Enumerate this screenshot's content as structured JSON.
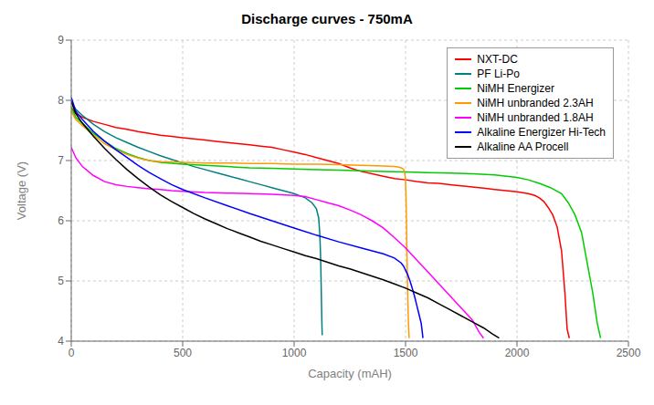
{
  "chart_data": {
    "type": "line",
    "title": "Discharge curves - 750mA",
    "xlabel": "Capacity (mAH)",
    "ylabel": "Voltage (V)",
    "xlim": [
      0,
      2500
    ],
    "ylim": [
      4,
      9
    ],
    "xticks": [
      0,
      500,
      1000,
      1500,
      2000,
      2500
    ],
    "yticks": [
      4,
      5,
      6,
      7,
      8,
      9
    ],
    "grid": true,
    "legend": "upper right",
    "series": [
      {
        "name": "NXT-DC",
        "color": "#ff0000",
        "x": [
          0,
          20,
          50,
          100,
          150,
          200,
          250,
          300,
          350,
          400,
          450,
          500,
          550,
          600,
          650,
          700,
          750,
          800,
          850,
          900,
          950,
          1000,
          1050,
          1100,
          1150,
          1200,
          1250,
          1300,
          1350,
          1400,
          1450,
          1500,
          1550,
          1600,
          1650,
          1700,
          1750,
          1800,
          1850,
          1900,
          1950,
          2000,
          2050,
          2080,
          2100,
          2120,
          2140,
          2160,
          2180,
          2200,
          2215,
          2225,
          2235
        ],
        "values": [
          7.88,
          7.78,
          7.72,
          7.65,
          7.6,
          7.55,
          7.52,
          7.48,
          7.45,
          7.42,
          7.4,
          7.38,
          7.36,
          7.34,
          7.32,
          7.3,
          7.28,
          7.26,
          7.24,
          7.22,
          7.18,
          7.14,
          7.1,
          7.05,
          7.0,
          6.95,
          6.88,
          6.82,
          6.78,
          6.74,
          6.7,
          6.68,
          6.65,
          6.63,
          6.62,
          6.6,
          6.58,
          6.56,
          6.54,
          6.52,
          6.5,
          6.48,
          6.45,
          6.42,
          6.38,
          6.32,
          6.22,
          6.1,
          5.9,
          5.5,
          4.8,
          4.2,
          4.05
        ]
      },
      {
        "name": "PF Li-Po",
        "color": "#008080",
        "x": [
          0,
          20,
          50,
          100,
          150,
          200,
          250,
          300,
          350,
          400,
          450,
          500,
          550,
          600,
          650,
          700,
          750,
          800,
          850,
          900,
          950,
          1000,
          1050,
          1080,
          1100,
          1110,
          1115,
          1118,
          1120,
          1122,
          1124,
          1126
        ],
        "values": [
          7.98,
          7.85,
          7.75,
          7.6,
          7.48,
          7.38,
          7.3,
          7.22,
          7.15,
          7.08,
          7.02,
          6.96,
          6.9,
          6.85,
          6.8,
          6.75,
          6.7,
          6.65,
          6.6,
          6.55,
          6.5,
          6.45,
          6.38,
          6.3,
          6.2,
          6.05,
          5.8,
          5.5,
          5.2,
          4.8,
          4.4,
          4.1
        ]
      },
      {
        "name": "NiMH Energizer",
        "color": "#00cc00",
        "x": [
          0,
          20,
          50,
          100,
          150,
          200,
          250,
          300,
          350,
          400,
          500,
          600,
          700,
          800,
          900,
          1000,
          1100,
          1200,
          1300,
          1400,
          1500,
          1600,
          1700,
          1800,
          1900,
          2000,
          2050,
          2100,
          2150,
          2200,
          2230,
          2260,
          2290,
          2310,
          2340,
          2360,
          2375
        ],
        "values": [
          7.88,
          7.72,
          7.62,
          7.45,
          7.32,
          7.2,
          7.12,
          7.05,
          7.0,
          6.97,
          6.94,
          6.92,
          6.9,
          6.88,
          6.87,
          6.86,
          6.85,
          6.84,
          6.83,
          6.82,
          6.81,
          6.8,
          6.79,
          6.78,
          6.76,
          6.72,
          6.68,
          6.62,
          6.55,
          6.45,
          6.3,
          6.1,
          5.8,
          5.4,
          4.8,
          4.3,
          4.05
        ]
      },
      {
        "name": "NiMH unbranded 2.3AH",
        "color": "#ff9900",
        "x": [
          0,
          20,
          50,
          100,
          150,
          200,
          250,
          300,
          350,
          400,
          500,
          600,
          700,
          800,
          900,
          1000,
          1100,
          1200,
          1300,
          1400,
          1450,
          1470,
          1480,
          1490,
          1495,
          1498,
          1500,
          1502,
          1504,
          1506,
          1508,
          1510,
          1513,
          1516
        ],
        "values": [
          7.82,
          7.68,
          7.58,
          7.42,
          7.28,
          7.18,
          7.1,
          7.04,
          7.0,
          6.98,
          6.97,
          6.96,
          6.96,
          6.95,
          6.95,
          6.94,
          6.94,
          6.93,
          6.92,
          6.91,
          6.9,
          6.89,
          6.88,
          6.86,
          6.82,
          6.75,
          6.65,
          6.4,
          6.0,
          5.5,
          5.1,
          4.7,
          4.3,
          4.05
        ]
      },
      {
        "name": "NiMH unbranded 1.8AH",
        "color": "#ff00ff",
        "x": [
          0,
          20,
          50,
          100,
          150,
          200,
          250,
          300,
          350,
          400,
          450,
          500,
          600,
          700,
          800,
          900,
          1000,
          1050,
          1100,
          1150,
          1200,
          1250,
          1300,
          1350,
          1400,
          1450,
          1500,
          1550,
          1600,
          1650,
          1700,
          1750,
          1800,
          1830,
          1850
        ],
        "values": [
          7.22,
          7.05,
          6.9,
          6.75,
          6.65,
          6.6,
          6.57,
          6.55,
          6.53,
          6.52,
          6.5,
          6.49,
          6.47,
          6.46,
          6.45,
          6.44,
          6.42,
          6.4,
          6.35,
          6.3,
          6.25,
          6.18,
          6.1,
          6.0,
          5.88,
          5.72,
          5.55,
          5.35,
          5.15,
          4.95,
          4.75,
          4.55,
          4.35,
          4.15,
          4.05
        ]
      },
      {
        "name": "Alkaline Energizer Hi-Tech",
        "color": "#0000ff",
        "x": [
          0,
          20,
          50,
          100,
          150,
          200,
          250,
          300,
          350,
          400,
          450,
          500,
          600,
          700,
          800,
          900,
          1000,
          1100,
          1200,
          1300,
          1400,
          1450,
          1480,
          1490,
          1500,
          1510,
          1520,
          1530,
          1540,
          1550,
          1560,
          1570,
          1575,
          1578
        ],
        "values": [
          8.05,
          7.82,
          7.68,
          7.48,
          7.32,
          7.18,
          7.05,
          6.92,
          6.8,
          6.7,
          6.6,
          6.52,
          6.38,
          6.25,
          6.12,
          6.0,
          5.88,
          5.76,
          5.65,
          5.55,
          5.45,
          5.38,
          5.3,
          5.25,
          5.18,
          5.1,
          5.0,
          4.88,
          4.75,
          4.6,
          4.45,
          4.3,
          4.15,
          4.05
        ]
      },
      {
        "name": "Alkaline AA Procell",
        "color": "#000000",
        "x": [
          0,
          20,
          50,
          100,
          150,
          200,
          250,
          300,
          350,
          400,
          450,
          500,
          550,
          600,
          650,
          700,
          750,
          800,
          850,
          900,
          950,
          1000,
          1050,
          1100,
          1150,
          1200,
          1250,
          1300,
          1350,
          1400,
          1450,
          1500,
          1550,
          1600,
          1650,
          1700,
          1750,
          1800,
          1850,
          1890,
          1920
        ],
        "values": [
          7.98,
          7.78,
          7.62,
          7.4,
          7.2,
          7.02,
          6.85,
          6.7,
          6.56,
          6.43,
          6.32,
          6.22,
          6.12,
          6.03,
          5.95,
          5.87,
          5.8,
          5.73,
          5.66,
          5.6,
          5.54,
          5.48,
          5.42,
          5.37,
          5.31,
          5.25,
          5.2,
          5.14,
          5.08,
          5.02,
          4.95,
          4.88,
          4.8,
          4.72,
          4.62,
          4.52,
          4.42,
          4.32,
          4.22,
          4.12,
          4.05
        ]
      }
    ]
  }
}
